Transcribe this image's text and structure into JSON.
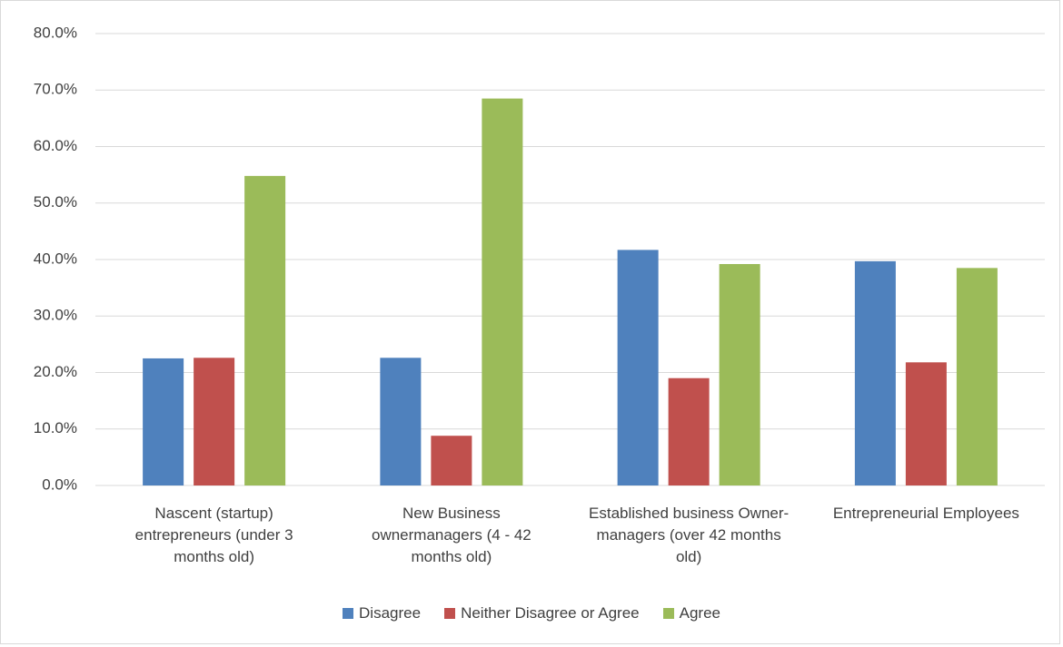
{
  "chart_data": {
    "type": "bar",
    "categories": [
      "Nascent (startup) entrepreneurs (under 3 months old)",
      "New Business ownermanagers (4 - 42 months old)",
      "Established business Owner-managers (over 42 months old)",
      "Entrepreneurial Employees"
    ],
    "series": [
      {
        "name": "Disagree",
        "color": "#4f81bd",
        "values": [
          22.5,
          22.6,
          41.7,
          39.7
        ]
      },
      {
        "name": "Neither Disagree or Agree",
        "color": "#c0504d",
        "values": [
          22.6,
          8.8,
          19.0,
          21.8
        ]
      },
      {
        "name": "Agree",
        "color": "#9bbb59",
        "values": [
          54.8,
          68.5,
          39.2,
          38.5
        ]
      }
    ],
    "ylim": [
      0,
      80
    ],
    "yticks": [
      {
        "value": 0,
        "label": "0.0%"
      },
      {
        "value": 10,
        "label": "10.0%"
      },
      {
        "value": 20,
        "label": "20.0%"
      },
      {
        "value": 30,
        "label": "30.0%"
      },
      {
        "value": 40,
        "label": "40.0%"
      },
      {
        "value": 50,
        "label": "50.0%"
      },
      {
        "value": 60,
        "label": "60.0%"
      },
      {
        "value": 70,
        "label": "70.0%"
      },
      {
        "value": 80,
        "label": "80.0%"
      }
    ],
    "grid": true,
    "legend": "bottom"
  }
}
